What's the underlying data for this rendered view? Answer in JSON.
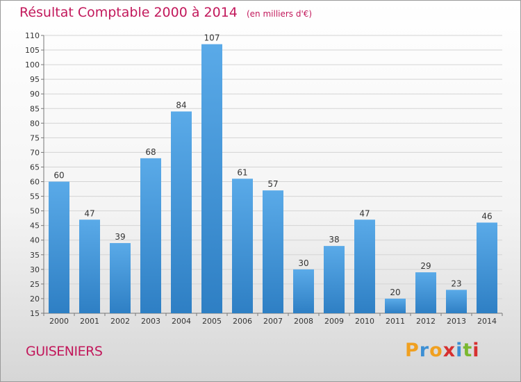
{
  "header": {
    "title": "Résultat Comptable 2000 à 2014",
    "unit": "(en milliers d'€)"
  },
  "footer": {
    "commune": "GUISENIERS",
    "brand": [
      "P",
      "r",
      "o",
      "x",
      "i",
      "t",
      "i"
    ]
  },
  "colors": {
    "title": "#c2185b",
    "bar_top": "#5aaae8",
    "bar_bottom": "#2e7fc4",
    "brand": [
      "#f0a020",
      "#3c8fd4",
      "#f0a020",
      "#d63030",
      "#3c8fd4",
      "#7ab830",
      "#d63030"
    ]
  },
  "chart_data": {
    "type": "bar",
    "title": "Résultat Comptable 2000 à 2014",
    "subtitle": "(en milliers d'€)",
    "xlabel": "",
    "ylabel": "",
    "categories": [
      "2000",
      "2001",
      "2002",
      "2003",
      "2004",
      "2005",
      "2006",
      "2007",
      "2008",
      "2009",
      "2010",
      "2011",
      "2012",
      "2013",
      "2014"
    ],
    "values": [
      60,
      47,
      39,
      68,
      84,
      107,
      61,
      57,
      30,
      38,
      47,
      20,
      29,
      23,
      46
    ],
    "ylim": [
      15,
      110
    ],
    "yticks": [
      15,
      20,
      25,
      30,
      35,
      40,
      45,
      50,
      55,
      60,
      65,
      70,
      75,
      80,
      85,
      90,
      95,
      100,
      105,
      110
    ],
    "grid": true,
    "legend": "none"
  }
}
